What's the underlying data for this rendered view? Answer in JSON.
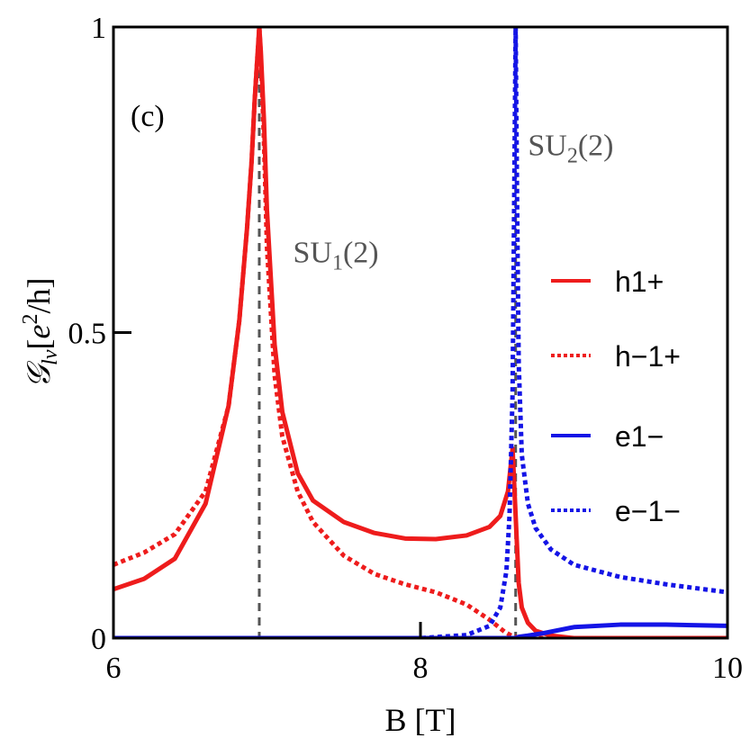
{
  "chart_data": {
    "type": "line",
    "panel_label": "(c)",
    "xlabel": "B [T]",
    "ylabel_symbol": "𝒢",
    "ylabel_sub": "lν",
    "ylabel_unit_open": "[",
    "ylabel_unit_e": "e",
    "ylabel_unit_sup": "2",
    "ylabel_unit_rest": "/h]",
    "xlim": [
      6,
      10
    ],
    "ylim": [
      0,
      1
    ],
    "xticks": [
      {
        "value": 6,
        "label": "6"
      },
      {
        "value": 8,
        "label": "8"
      },
      {
        "value": 10,
        "label": "10"
      }
    ],
    "yticks": [
      {
        "value": 0,
        "label": "0"
      },
      {
        "value": 0.5,
        "label": "0.5"
      },
      {
        "value": 1,
        "label": "1"
      }
    ],
    "vlines": [
      {
        "x": 6.95,
        "style": "dashed",
        "color": "#555555"
      },
      {
        "x": 8.62,
        "style": "dashed",
        "color": "#555555"
      }
    ],
    "annotations": [
      {
        "id": "su1",
        "base": "SU",
        "sub": "1",
        "rest": "(2)",
        "x": 7.17,
        "y": 0.615
      },
      {
        "id": "su2",
        "base": "SU",
        "sub": "2",
        "rest": "(2)",
        "x": 8.7,
        "y": 0.79
      }
    ],
    "series": [
      {
        "name": "h1+",
        "color": "#ee1c1c",
        "dash": "solid",
        "x": [
          6.0,
          6.2,
          6.4,
          6.6,
          6.75,
          6.82,
          6.87,
          6.9,
          6.92,
          6.94,
          6.95,
          6.96,
          6.98,
          7.0,
          7.05,
          7.1,
          7.2,
          7.3,
          7.5,
          7.7,
          7.9,
          8.1,
          8.3,
          8.45,
          8.52,
          8.57,
          8.6,
          8.62,
          8.64,
          8.66,
          8.7,
          8.75,
          8.85,
          9.0,
          9.5,
          10.0
        ],
        "y": [
          0.08,
          0.097,
          0.13,
          0.22,
          0.38,
          0.52,
          0.67,
          0.78,
          0.88,
          0.96,
          1.0,
          0.96,
          0.85,
          0.7,
          0.48,
          0.37,
          0.27,
          0.225,
          0.19,
          0.172,
          0.163,
          0.162,
          0.168,
          0.182,
          0.2,
          0.24,
          0.31,
          0.2,
          0.09,
          0.05,
          0.025,
          0.012,
          0.004,
          0.0,
          0.0,
          0.0
        ]
      },
      {
        "name": "h−1+",
        "color": "#ee1c1c",
        "dash": "dotted",
        "x": [
          6.0,
          6.2,
          6.4,
          6.6,
          6.75,
          6.82,
          6.87,
          6.9,
          6.92,
          6.94,
          6.95,
          6.96,
          6.98,
          7.0,
          7.05,
          7.1,
          7.2,
          7.3,
          7.5,
          7.7,
          7.9,
          8.1,
          8.3,
          8.45,
          8.55,
          8.6,
          8.65,
          8.75,
          9.0,
          10.0
        ],
        "y": [
          0.12,
          0.14,
          0.17,
          0.24,
          0.38,
          0.52,
          0.67,
          0.78,
          0.88,
          0.96,
          1.0,
          0.95,
          0.82,
          0.64,
          0.43,
          0.33,
          0.24,
          0.19,
          0.135,
          0.105,
          0.088,
          0.075,
          0.055,
          0.03,
          0.01,
          0.003,
          0.0,
          0.0,
          0.0,
          0.0
        ]
      },
      {
        "name": "e1−",
        "color": "#1414e6",
        "dash": "solid",
        "x": [
          6.0,
          7.0,
          8.0,
          8.4,
          8.55,
          8.6,
          8.62,
          8.64,
          8.7,
          8.8,
          9.0,
          9.3,
          9.6,
          10.0
        ],
        "y": [
          0.0,
          0.0,
          0.0,
          0.0,
          0.0,
          0.0,
          0.0,
          0.002,
          0.004,
          0.008,
          0.018,
          0.022,
          0.022,
          0.02
        ]
      },
      {
        "name": "e−1−",
        "color": "#1414e6",
        "dash": "dotted",
        "x": [
          6.0,
          7.0,
          8.0,
          8.3,
          8.45,
          8.52,
          8.56,
          8.58,
          8.6,
          8.61,
          8.62,
          8.63,
          8.64,
          8.66,
          8.7,
          8.75,
          8.85,
          9.0,
          9.3,
          9.6,
          10.0
        ],
        "y": [
          0.0,
          0.0,
          0.0,
          0.005,
          0.02,
          0.05,
          0.11,
          0.2,
          0.4,
          0.7,
          1.0,
          0.7,
          0.45,
          0.3,
          0.22,
          0.18,
          0.145,
          0.12,
          0.1,
          0.088,
          0.075
        ]
      }
    ]
  }
}
